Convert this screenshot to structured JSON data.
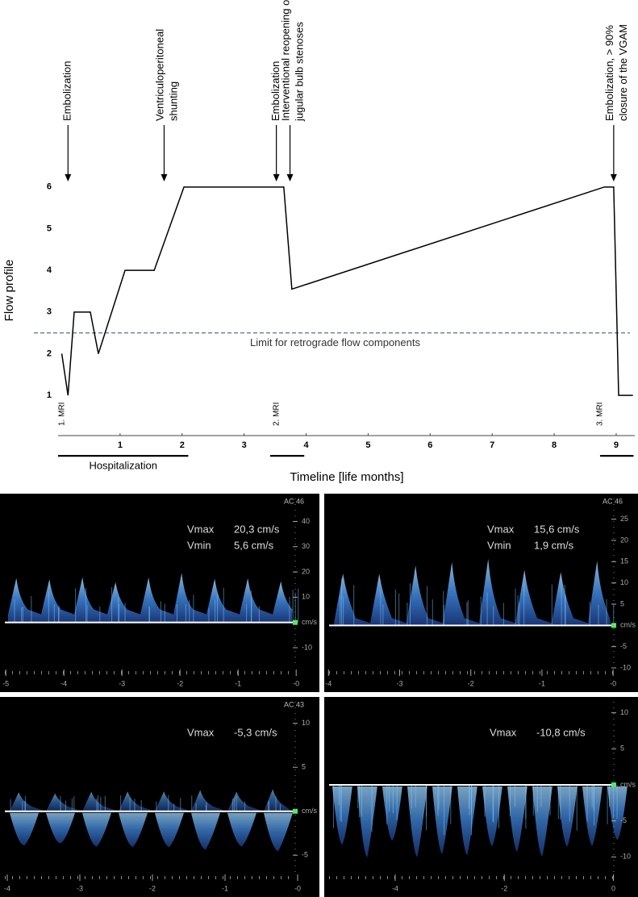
{
  "chart_data": {
    "type": "line",
    "ylabel": "Flow profile",
    "xlabel": "Timeline [life months]",
    "x": [
      0.06,
      0.16,
      0.26,
      0.52,
      0.65,
      1.08,
      1.55,
      2.03,
      3.64,
      3.77,
      8.81,
      8.96,
      9.04,
      9.27
    ],
    "values": [
      2,
      1,
      3,
      3,
      2,
      4,
      4,
      6,
      6,
      3.55,
      6,
      6,
      1,
      1
    ],
    "color": "#000000",
    "xlim": [
      0,
      9.3
    ],
    "ylim": [
      0.5,
      6.5
    ],
    "xticks": [
      1,
      2,
      3,
      4,
      5,
      6,
      7,
      8,
      9
    ],
    "yticks": [
      1,
      2,
      3,
      4,
      5,
      6
    ],
    "threshold": {
      "value": 2.5,
      "label": "Limit for retrograde flow components",
      "color": "#6b7f86"
    },
    "annotations": [
      {
        "x": 0.16,
        "lines": [
          "Embolization"
        ]
      },
      {
        "x": 1.71,
        "lines": [
          "Ventriculoperitoneal",
          "shunting"
        ]
      },
      {
        "x": 3.52,
        "lines": [
          "Embolization"
        ]
      },
      {
        "x": 3.74,
        "lines": [
          "Interventional reopening of",
          "jugular bulb stenoses"
        ]
      },
      {
        "x": 8.96,
        "lines": [
          "Embolization, > 90%",
          "closure of the VGAM"
        ]
      }
    ],
    "mri": [
      {
        "x": 0.06,
        "label": "1. MRI"
      },
      {
        "x": 3.52,
        "label": "2. MRI"
      },
      {
        "x": 8.74,
        "label": "3. MRI"
      }
    ],
    "periods": [
      {
        "start": 0,
        "end": 2.1,
        "label": "Hospitalization"
      },
      {
        "start": 3.42,
        "end": 3.97
      },
      {
        "start": 8.74,
        "end": 9.28
      }
    ]
  },
  "doppler_panels": [
    {
      "device_label": "AC 46",
      "readings": [
        {
          "name": "Vmax",
          "text": "20,3 cm/s"
        },
        {
          "name": "Vmin",
          "text": "5,6 cm/s"
        }
      ],
      "ylim": [
        -18,
        51
      ],
      "yticks": [
        40,
        30,
        20,
        10,
        {
          "value": 0,
          "label": "cm/s"
        },
        -10
      ],
      "xlim": [
        -5.1,
        0.4
      ],
      "xticks": [
        -5,
        -4,
        -3,
        -2,
        -1,
        {
          "value": 0,
          "label": "-0"
        }
      ]
    },
    {
      "device_label": "AC 46",
      "readings": [
        {
          "name": "Vmax",
          "text": "15,6 cm/s"
        },
        {
          "name": "Vmin",
          "text": "1,9 cm/s"
        }
      ],
      "ylim": [
        -10,
        31
      ],
      "yticks": [
        25,
        20,
        15,
        10,
        5,
        {
          "value": 0,
          "label": "cm/s"
        },
        -5,
        -10
      ],
      "xlim": [
        -4.06,
        0.35
      ],
      "xticks": [
        -4,
        -3,
        -2,
        -1,
        {
          "value": 0,
          "label": "-0"
        }
      ]
    },
    {
      "device_label": "AC 43",
      "readings": [
        {
          "name": "Vmax",
          "text": "-5,3 cm/s"
        }
      ],
      "ylim": [
        -7,
        13
      ],
      "yticks": [
        10,
        5,
        {
          "value": 0,
          "label": "cm/s"
        },
        -5
      ],
      "xlim": [
        -4.1,
        0.3
      ],
      "xticks": [
        -4,
        -3,
        -2,
        -1,
        {
          "value": 0,
          "label": "-0"
        }
      ]
    },
    {
      "readings": [
        {
          "name": "Vmax",
          "text": "-10,8 cm/s"
        }
      ],
      "ylim": [
        -12.2,
        12.2
      ],
      "yticks": [
        10,
        5,
        {
          "value": 0,
          "label": "cm/s"
        },
        -5,
        -10
      ],
      "xlim": [
        -5.3,
        0.45
      ],
      "xticks": [
        -4,
        -2,
        0
      ]
    }
  ]
}
